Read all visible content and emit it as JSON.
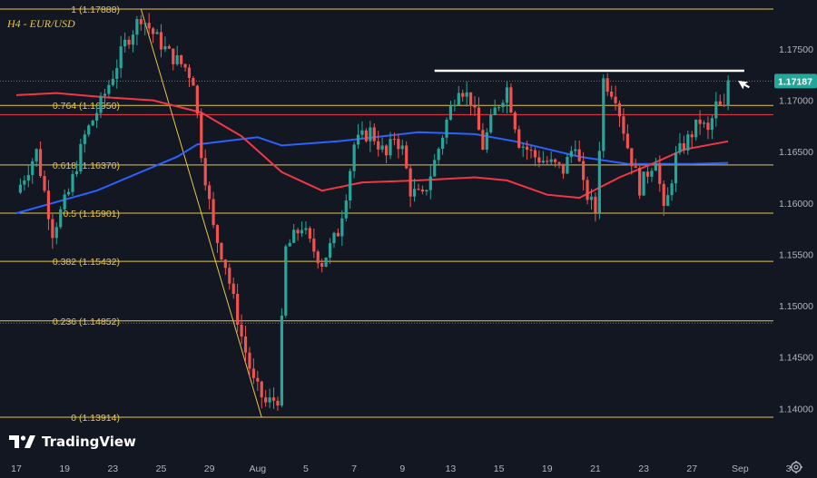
{
  "symbol_label": "H4 - EUR/USD",
  "brand": {
    "name": "TradingView",
    "icon": "tradingview-logo-icon"
  },
  "colors": {
    "background": "#131722",
    "bull": "#26a69a",
    "bear": "#ef5350",
    "fib": "#e8c547",
    "ma_blue": "#2962ff",
    "ma_red": "#f23645",
    "price_tag": "#26a69a",
    "text_axis": "#b2b5be",
    "resistance": "#ffffff"
  },
  "chart_data": {
    "type": "candlestick",
    "ylim": [
      1.1375,
      1.1795
    ],
    "price_axis_ticks": [
      "1.17500",
      "1.17000",
      "1.16500",
      "1.16000",
      "1.15500",
      "1.15000",
      "1.14500",
      "1.14000"
    ],
    "price_axis_tick_values": [
      1.175,
      1.17,
      1.165,
      1.16,
      1.155,
      1.15,
      1.145,
      1.14
    ],
    "current_price_label": "1.17187",
    "current_price": 1.17187,
    "time_axis_labels": [
      "17",
      "19",
      "23",
      "25",
      "29",
      "Aug",
      "5",
      "7",
      "9",
      "13",
      "15",
      "19",
      "21",
      "23",
      "27",
      "Sep",
      "3"
    ],
    "time_axis_positions_bars": [
      0,
      12,
      24,
      36,
      48,
      60,
      72,
      84,
      96,
      108,
      120,
      132,
      144,
      156,
      168,
      180,
      192
    ],
    "fib_levels": [
      {
        "ratio": "1",
        "price": 1.17888,
        "label": "1 (1.17888)"
      },
      {
        "ratio": "0.764",
        "price": 1.1695,
        "label": "0.764 (1.16950)"
      },
      {
        "ratio": "0.618",
        "price": 1.1637,
        "label": "0.618 (1.16370)"
      },
      {
        "ratio": "0.5",
        "price": 1.15901,
        "label": "0.5 (1.15901)"
      },
      {
        "ratio": "0.382",
        "price": 1.15432,
        "label": "0.382 (1.15432)"
      },
      {
        "ratio": "0.236",
        "price": 1.14852,
        "label": "0.236 (1.14852)"
      },
      {
        "ratio": "0",
        "price": 1.13914,
        "label": "0 (1.13914)"
      }
    ],
    "resistance_price": 1.17287,
    "dotted_levels": [
      1.17187,
      1.1483
    ],
    "red_horizontal": 1.1686,
    "trend_line": {
      "from": {
        "bar": 31,
        "price": 1.17888
      },
      "to": {
        "bar": 61,
        "price": 1.13914
      }
    },
    "key_points": [
      [
        0,
        1.161
      ],
      [
        5,
        1.165
      ],
      [
        9,
        1.1572
      ],
      [
        13,
        1.161
      ],
      [
        17,
        1.1665
      ],
      [
        21,
        1.1697
      ],
      [
        24,
        1.1725
      ],
      [
        27,
        1.1755
      ],
      [
        31,
        1.1782
      ],
      [
        34,
        1.1765
      ],
      [
        38,
        1.1745
      ],
      [
        42,
        1.1732
      ],
      [
        44,
        1.172
      ],
      [
        46,
        1.165
      ],
      [
        49,
        1.1575
      ],
      [
        52,
        1.154
      ],
      [
        56,
        1.147
      ],
      [
        59,
        1.1425
      ],
      [
        62,
        1.1405
      ],
      [
        65,
        1.141
      ],
      [
        67,
        1.1555
      ],
      [
        71,
        1.1578
      ],
      [
        73,
        1.156
      ],
      [
        76,
        1.1542
      ],
      [
        80,
        1.1572
      ],
      [
        82,
        1.161
      ],
      [
        84,
        1.1657
      ],
      [
        88,
        1.167
      ],
      [
        92,
        1.1645
      ],
      [
        94,
        1.1665
      ],
      [
        96,
        1.1652
      ],
      [
        98,
        1.1612
      ],
      [
        101,
        1.1605
      ],
      [
        104,
        1.164
      ],
      [
        107,
        1.168
      ],
      [
        110,
        1.1715
      ],
      [
        113,
        1.17
      ],
      [
        116,
        1.1655
      ],
      [
        119,
        1.169
      ],
      [
        122,
        1.1712
      ],
      [
        125,
        1.166
      ],
      [
        129,
        1.1645
      ],
      [
        132,
        1.164
      ],
      [
        136,
        1.1632
      ],
      [
        139,
        1.166
      ],
      [
        141,
        1.1615
      ],
      [
        144,
        1.1592
      ],
      [
        146,
        1.172
      ],
      [
        149,
        1.1705
      ],
      [
        152,
        1.1655
      ],
      [
        155,
        1.1615
      ],
      [
        159,
        1.1645
      ],
      [
        161,
        1.159
      ],
      [
        162,
        1.1605
      ],
      [
        164,
        1.1645
      ],
      [
        167,
        1.1662
      ],
      [
        170,
        1.168
      ],
      [
        172,
        1.1668
      ],
      [
        174,
        1.1695
      ],
      [
        176,
        1.169
      ],
      [
        177,
        1.172
      ]
    ],
    "blue_ma": [
      [
        0,
        1.159
      ],
      [
        20,
        1.1612
      ],
      [
        40,
        1.1645
      ],
      [
        45,
        1.1657
      ],
      [
        60,
        1.1664
      ],
      [
        66,
        1.1656
      ],
      [
        80,
        1.166
      ],
      [
        100,
        1.1669
      ],
      [
        114,
        1.1667
      ],
      [
        124,
        1.166
      ],
      [
        140,
        1.1645
      ],
      [
        152,
        1.1638
      ],
      [
        168,
        1.1638
      ],
      [
        177,
        1.1639
      ]
    ],
    "red_ma": [
      [
        0,
        1.1705
      ],
      [
        10,
        1.1707
      ],
      [
        22,
        1.1703
      ],
      [
        34,
        1.17
      ],
      [
        46,
        1.1688
      ],
      [
        56,
        1.1665
      ],
      [
        66,
        1.163
      ],
      [
        76,
        1.1612
      ],
      [
        86,
        1.162
      ],
      [
        100,
        1.1622
      ],
      [
        114,
        1.1625
      ],
      [
        122,
        1.1622
      ],
      [
        132,
        1.1608
      ],
      [
        140,
        1.1605
      ],
      [
        150,
        1.1625
      ],
      [
        158,
        1.1638
      ],
      [
        166,
        1.1652
      ],
      [
        177,
        1.166
      ]
    ]
  }
}
